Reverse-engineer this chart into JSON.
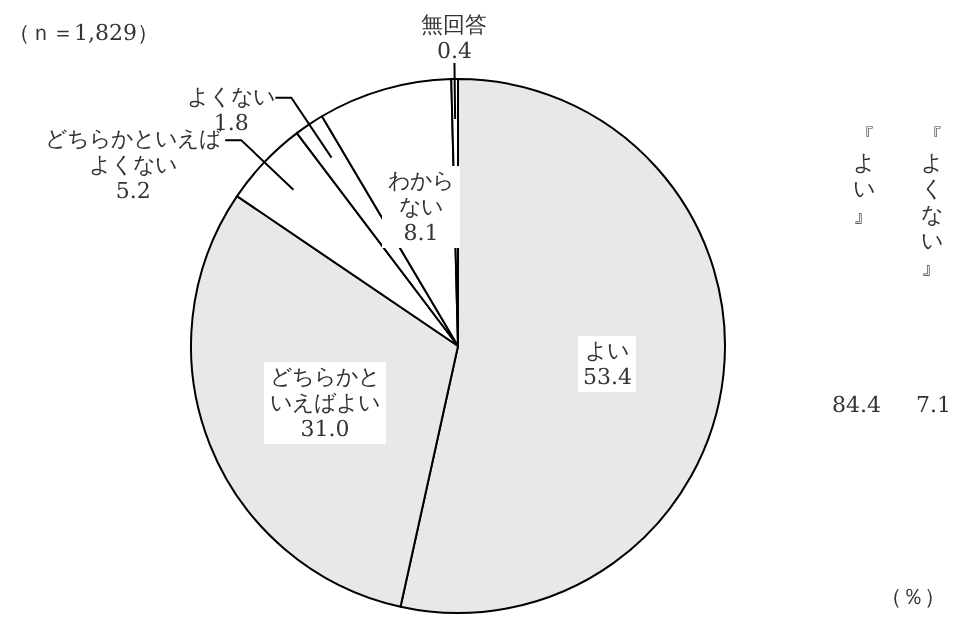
{
  "chart_data": {
    "type": "pie",
    "categories": [
      "よい",
      "どちらかといえばよい",
      "どちらかといえばよくない",
      "よくない",
      "わからない",
      "無回答"
    ],
    "values": [
      53.4,
      31.0,
      5.2,
      1.8,
      8.1,
      0.4
    ],
    "colors": [
      "#e8e8e8",
      "#e8e8e8",
      "#ffffff",
      "#ffffff",
      "#ffffff",
      "#ffffff"
    ],
    "value_labels": [
      "53.4",
      "31.0",
      "5.2",
      "1.8",
      "8.1",
      "0.4"
    ],
    "legend": false,
    "annotations": [
      "（ｎ＝1,829）",
      "（％）",
      "『よい』",
      "84.4",
      "『よくない』",
      "7.1"
    ]
  }
}
